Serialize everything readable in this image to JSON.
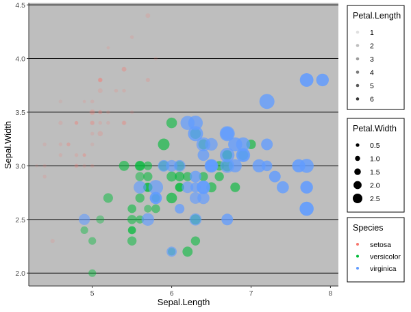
{
  "chart_data": {
    "type": "scatter",
    "xlabel": "Sepal.Length",
    "ylabel": "Sepal.Width",
    "xlim": [
      4.2,
      8.1
    ],
    "ylim": [
      1.88,
      4.52
    ],
    "xticks": [
      5,
      6,
      7,
      8
    ],
    "yticks": [
      2.0,
      2.5,
      3.0,
      3.5,
      4.0,
      4.5
    ],
    "ytick_labels": [
      "2.0",
      "2.5",
      "3.0",
      "3.5",
      "4.0",
      "4.5"
    ],
    "grid": "horizontal major lines at y ticks",
    "panel_background": "#bebebe",
    "alpha_encoding": "Petal.Length",
    "size_encoding": "Petal.Width",
    "color_encoding": "Species",
    "species_colors": {
      "setosa": "#f8766d",
      "versicolor": "#00ba38",
      "virginica": "#619cff"
    },
    "legends": [
      {
        "title": "Petal.Length",
        "type": "alpha",
        "entries": [
          "1",
          "2",
          "3",
          "4",
          "5",
          "6"
        ]
      },
      {
        "title": "Petal.Width",
        "type": "size",
        "entries": [
          "0.5",
          "1.0",
          "1.5",
          "2.0",
          "2.5"
        ]
      },
      {
        "title": "Species",
        "type": "color",
        "entries": [
          "setosa",
          "versicolor",
          "virginica"
        ]
      }
    ],
    "series": [
      {
        "name": "setosa",
        "columns": [
          "Sepal.Length",
          "Sepal.Width",
          "Petal.Length",
          "Petal.Width"
        ],
        "points": [
          [
            5.1,
            3.5,
            1.4,
            0.2
          ],
          [
            4.9,
            3.0,
            1.4,
            0.2
          ],
          [
            4.7,
            3.2,
            1.3,
            0.2
          ],
          [
            4.6,
            3.1,
            1.5,
            0.2
          ],
          [
            5.0,
            3.6,
            1.4,
            0.2
          ],
          [
            5.4,
            3.9,
            1.7,
            0.4
          ],
          [
            4.6,
            3.4,
            1.4,
            0.3
          ],
          [
            5.0,
            3.4,
            1.5,
            0.2
          ],
          [
            4.4,
            2.9,
            1.4,
            0.2
          ],
          [
            4.9,
            3.1,
            1.5,
            0.1
          ],
          [
            5.4,
            3.7,
            1.5,
            0.2
          ],
          [
            4.8,
            3.4,
            1.6,
            0.2
          ],
          [
            4.8,
            3.0,
            1.4,
            0.1
          ],
          [
            4.3,
            3.0,
            1.1,
            0.1
          ],
          [
            5.8,
            4.0,
            1.2,
            0.2
          ],
          [
            5.7,
            4.4,
            1.5,
            0.4
          ],
          [
            5.4,
            3.9,
            1.3,
            0.4
          ],
          [
            5.1,
            3.5,
            1.4,
            0.3
          ],
          [
            5.7,
            3.8,
            1.7,
            0.3
          ],
          [
            5.1,
            3.8,
            1.5,
            0.3
          ],
          [
            5.4,
            3.4,
            1.7,
            0.2
          ],
          [
            5.1,
            3.7,
            1.5,
            0.4
          ],
          [
            4.6,
            3.6,
            1.0,
            0.2
          ],
          [
            5.1,
            3.3,
            1.7,
            0.5
          ],
          [
            4.8,
            3.4,
            1.9,
            0.2
          ],
          [
            5.0,
            3.0,
            1.6,
            0.2
          ],
          [
            5.0,
            3.4,
            1.6,
            0.4
          ],
          [
            5.2,
            3.5,
            1.5,
            0.2
          ],
          [
            5.2,
            3.4,
            1.4,
            0.2
          ],
          [
            4.7,
            3.2,
            1.6,
            0.2
          ],
          [
            4.8,
            3.1,
            1.6,
            0.2
          ],
          [
            5.4,
            3.4,
            1.5,
            0.4
          ],
          [
            5.2,
            4.1,
            1.5,
            0.1
          ],
          [
            5.5,
            4.2,
            1.4,
            0.2
          ],
          [
            4.9,
            3.1,
            1.5,
            0.2
          ],
          [
            5.0,
            3.2,
            1.2,
            0.2
          ],
          [
            5.5,
            3.5,
            1.3,
            0.2
          ],
          [
            4.9,
            3.6,
            1.4,
            0.1
          ],
          [
            4.4,
            3.0,
            1.3,
            0.2
          ],
          [
            5.1,
            3.4,
            1.5,
            0.2
          ],
          [
            5.0,
            3.5,
            1.3,
            0.3
          ],
          [
            4.5,
            2.3,
            1.3,
            0.3
          ],
          [
            4.4,
            3.2,
            1.3,
            0.2
          ],
          [
            5.0,
            3.5,
            1.6,
            0.6
          ],
          [
            5.1,
            3.8,
            1.9,
            0.4
          ],
          [
            4.8,
            3.0,
            1.4,
            0.3
          ],
          [
            5.1,
            3.8,
            1.6,
            0.2
          ],
          [
            4.6,
            3.2,
            1.4,
            0.2
          ],
          [
            5.3,
            3.7,
            1.5,
            0.2
          ],
          [
            5.0,
            3.3,
            1.4,
            0.2
          ]
        ]
      },
      {
        "name": "versicolor",
        "columns": [
          "Sepal.Length",
          "Sepal.Width",
          "Petal.Length",
          "Petal.Width"
        ],
        "points": [
          [
            7.0,
            3.2,
            4.7,
            1.4
          ],
          [
            6.4,
            3.2,
            4.5,
            1.5
          ],
          [
            6.9,
            3.1,
            4.9,
            1.5
          ],
          [
            5.5,
            2.3,
            4.0,
            1.3
          ],
          [
            6.5,
            2.8,
            4.6,
            1.5
          ],
          [
            5.7,
            2.8,
            4.5,
            1.3
          ],
          [
            6.3,
            3.3,
            4.7,
            1.6
          ],
          [
            4.9,
            2.4,
            3.3,
            1.0
          ],
          [
            6.6,
            2.9,
            4.6,
            1.3
          ],
          [
            5.2,
            2.7,
            3.9,
            1.4
          ],
          [
            5.0,
            2.0,
            3.5,
            1.0
          ],
          [
            5.9,
            3.0,
            4.2,
            1.5
          ],
          [
            6.0,
            2.2,
            4.0,
            1.0
          ],
          [
            6.1,
            2.9,
            4.7,
            1.4
          ],
          [
            5.6,
            2.9,
            3.6,
            1.3
          ],
          [
            6.7,
            3.1,
            4.4,
            1.4
          ],
          [
            5.6,
            3.0,
            4.5,
            1.5
          ],
          [
            5.8,
            2.7,
            4.1,
            1.0
          ],
          [
            6.2,
            2.2,
            4.5,
            1.5
          ],
          [
            5.6,
            2.5,
            3.9,
            1.1
          ],
          [
            5.9,
            3.2,
            4.8,
            1.8
          ],
          [
            6.1,
            2.8,
            4.0,
            1.3
          ],
          [
            6.3,
            2.5,
            4.9,
            1.5
          ],
          [
            6.1,
            2.8,
            4.7,
            1.2
          ],
          [
            6.4,
            2.9,
            4.3,
            1.3
          ],
          [
            6.6,
            3.0,
            4.4,
            1.4
          ],
          [
            6.8,
            2.8,
            4.8,
            1.4
          ],
          [
            6.7,
            3.0,
            5.0,
            1.7
          ],
          [
            6.0,
            2.9,
            4.5,
            1.5
          ],
          [
            5.7,
            2.6,
            3.5,
            1.0
          ],
          [
            5.5,
            2.4,
            3.8,
            1.1
          ],
          [
            5.5,
            2.4,
            3.7,
            1.0
          ],
          [
            5.8,
            2.7,
            3.9,
            1.2
          ],
          [
            6.0,
            2.7,
            5.1,
            1.6
          ],
          [
            5.4,
            3.0,
            4.5,
            1.5
          ],
          [
            6.0,
            3.4,
            4.5,
            1.6
          ],
          [
            6.7,
            3.1,
            4.7,
            1.5
          ],
          [
            6.3,
            2.3,
            4.4,
            1.3
          ],
          [
            5.6,
            3.0,
            4.1,
            1.3
          ],
          [
            5.5,
            2.5,
            4.0,
            1.3
          ],
          [
            5.5,
            2.6,
            4.4,
            1.2
          ],
          [
            6.1,
            3.0,
            4.6,
            1.4
          ],
          [
            5.8,
            2.6,
            4.0,
            1.2
          ],
          [
            5.0,
            2.3,
            3.3,
            1.0
          ],
          [
            5.6,
            2.7,
            4.2,
            1.3
          ],
          [
            5.7,
            3.0,
            4.2,
            1.2
          ],
          [
            5.7,
            2.9,
            4.2,
            1.3
          ],
          [
            6.2,
            2.9,
            4.3,
            1.3
          ],
          [
            5.1,
            2.5,
            3.0,
            1.1
          ],
          [
            5.7,
            2.8,
            4.1,
            1.3
          ]
        ]
      },
      {
        "name": "virginica",
        "columns": [
          "Sepal.Length",
          "Sepal.Width",
          "Petal.Length",
          "Petal.Width"
        ],
        "points": [
          [
            6.3,
            3.3,
            6.0,
            2.5
          ],
          [
            5.8,
            2.7,
            5.1,
            1.9
          ],
          [
            7.1,
            3.0,
            5.9,
            2.1
          ],
          [
            6.3,
            2.9,
            5.6,
            1.8
          ],
          [
            6.5,
            3.0,
            5.8,
            2.2
          ],
          [
            7.6,
            3.0,
            6.6,
            2.1
          ],
          [
            4.9,
            2.5,
            4.5,
            1.7
          ],
          [
            7.3,
            2.9,
            6.3,
            1.8
          ],
          [
            6.7,
            2.5,
            5.8,
            1.8
          ],
          [
            7.2,
            3.6,
            6.1,
            2.5
          ],
          [
            6.5,
            3.2,
            5.1,
            2.0
          ],
          [
            6.4,
            2.7,
            5.3,
            1.9
          ],
          [
            6.8,
            3.0,
            5.5,
            2.1
          ],
          [
            5.7,
            2.5,
            5.0,
            2.0
          ],
          [
            5.8,
            2.8,
            5.1,
            2.4
          ],
          [
            6.4,
            3.2,
            5.3,
            2.3
          ],
          [
            6.5,
            3.0,
            5.5,
            1.8
          ],
          [
            7.7,
            3.8,
            6.7,
            2.2
          ],
          [
            7.7,
            2.6,
            6.9,
            2.3
          ],
          [
            6.0,
            2.2,
            5.0,
            1.5
          ],
          [
            6.9,
            3.2,
            5.7,
            2.3
          ],
          [
            5.6,
            2.8,
            4.9,
            2.0
          ],
          [
            7.7,
            2.8,
            6.7,
            2.0
          ],
          [
            6.3,
            2.7,
            4.9,
            1.8
          ],
          [
            6.7,
            3.3,
            5.7,
            2.1
          ],
          [
            7.2,
            3.2,
            6.0,
            1.8
          ],
          [
            6.2,
            2.8,
            4.8,
            1.8
          ],
          [
            6.1,
            3.0,
            4.9,
            1.8
          ],
          [
            6.4,
            2.8,
            5.6,
            2.1
          ],
          [
            7.2,
            3.0,
            5.8,
            1.6
          ],
          [
            7.4,
            2.8,
            6.1,
            1.9
          ],
          [
            7.9,
            3.8,
            6.4,
            2.0
          ],
          [
            6.4,
            2.8,
            5.6,
            2.2
          ],
          [
            6.3,
            2.8,
            5.1,
            1.5
          ],
          [
            6.1,
            2.6,
            5.6,
            1.4
          ],
          [
            7.7,
            3.0,
            6.1,
            2.3
          ],
          [
            6.3,
            3.4,
            5.6,
            2.4
          ],
          [
            6.4,
            3.1,
            5.5,
            1.8
          ],
          [
            6.0,
            3.0,
            4.8,
            1.8
          ],
          [
            6.9,
            3.1,
            5.4,
            2.1
          ],
          [
            6.7,
            3.1,
            5.6,
            2.4
          ],
          [
            6.9,
            3.1,
            5.1,
            2.3
          ],
          [
            5.8,
            2.7,
            5.1,
            1.9
          ],
          [
            6.8,
            3.2,
            5.9,
            2.3
          ],
          [
            6.7,
            3.3,
            5.7,
            2.5
          ],
          [
            6.7,
            3.0,
            5.2,
            2.3
          ],
          [
            6.3,
            2.5,
            5.0,
            1.9
          ],
          [
            6.5,
            3.0,
            5.2,
            2.0
          ],
          [
            6.2,
            3.4,
            5.4,
            2.3
          ],
          [
            5.9,
            3.0,
            5.1,
            1.8
          ]
        ]
      }
    ]
  }
}
